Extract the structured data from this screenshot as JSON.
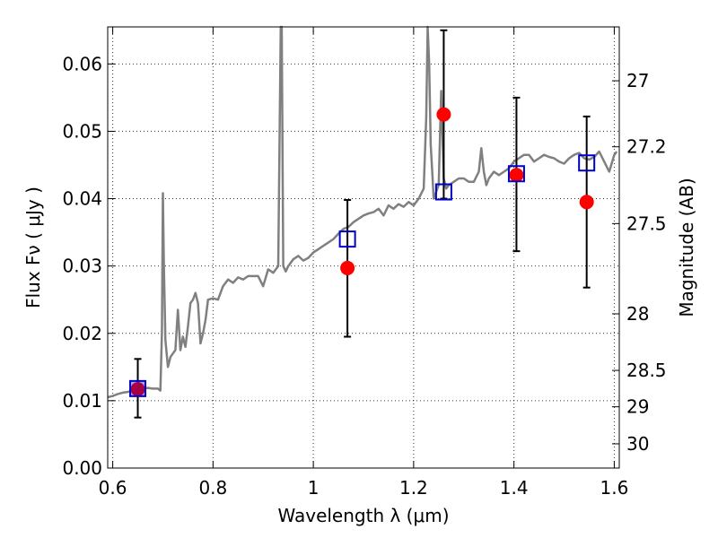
{
  "chart_data": {
    "type": "line",
    "xlabel": "Wavelength  λ (μm)",
    "ylabel_left": "Flux  Fν  ( μJy )",
    "ylabel_right": "Magnitude (AB)",
    "xlim": [
      0.59,
      1.61
    ],
    "ylim": [
      0.0,
      0.0655
    ],
    "grid": true,
    "x_ticks": [
      0.6,
      0.8,
      1.0,
      1.2,
      1.4,
      1.6
    ],
    "x_tick_labels": [
      "0.6",
      "0.8",
      "1",
      "1.2",
      "1.4",
      "1.6"
    ],
    "y_ticks": [
      0.0,
      0.01,
      0.02,
      0.03,
      0.04,
      0.05,
      0.06
    ],
    "y_tick_labels": [
      "0.00",
      "0.01",
      "0.02",
      "0.03",
      "0.04",
      "0.05",
      "0.06"
    ],
    "right_ticks": [
      {
        "flux": 0.0575,
        "label": "27"
      },
      {
        "flux": 0.0477,
        "label": "27.2"
      },
      {
        "flux": 0.0363,
        "label": "27.5"
      },
      {
        "flux": 0.0229,
        "label": "28"
      },
      {
        "flux": 0.0145,
        "label": "28.5"
      },
      {
        "flux": 0.0091,
        "label": "29"
      },
      {
        "flux": 0.0036,
        "label": "30"
      }
    ],
    "colors": {
      "spectrum": "#808080",
      "observed": "#ff0000",
      "model": "#0000cc",
      "errorbar": "#000000",
      "grid": "#000000"
    },
    "series": [
      {
        "kind": "spectrum",
        "x": [
          0.59,
          0.6,
          0.61,
          0.62,
          0.63,
          0.64,
          0.65,
          0.66,
          0.67,
          0.68,
          0.69,
          0.695,
          0.698,
          0.7,
          0.702,
          0.705,
          0.71,
          0.715,
          0.72,
          0.725,
          0.73,
          0.735,
          0.74,
          0.745,
          0.75,
          0.755,
          0.76,
          0.765,
          0.77,
          0.775,
          0.78,
          0.785,
          0.79,
          0.8,
          0.81,
          0.82,
          0.83,
          0.84,
          0.85,
          0.86,
          0.87,
          0.88,
          0.89,
          0.9,
          0.91,
          0.92,
          0.93,
          0.935,
          0.937,
          0.94,
          0.943,
          0.945,
          0.95,
          0.96,
          0.97,
          0.98,
          0.99,
          1.0,
          1.01,
          1.02,
          1.03,
          1.04,
          1.05,
          1.06,
          1.07,
          1.08,
          1.09,
          1.1,
          1.11,
          1.12,
          1.13,
          1.14,
          1.15,
          1.16,
          1.17,
          1.18,
          1.19,
          1.2,
          1.21,
          1.22,
          1.225,
          1.228,
          1.231,
          1.234,
          1.237,
          1.24,
          1.245,
          1.25,
          1.255,
          1.26,
          1.265,
          1.27,
          1.28,
          1.29,
          1.3,
          1.31,
          1.32,
          1.33,
          1.335,
          1.34,
          1.345,
          1.35,
          1.36,
          1.37,
          1.38,
          1.39,
          1.4,
          1.41,
          1.42,
          1.43,
          1.44,
          1.45,
          1.46,
          1.47,
          1.48,
          1.49,
          1.5,
          1.51,
          1.52,
          1.53,
          1.54,
          1.55,
          1.56,
          1.57,
          1.58,
          1.59,
          1.6,
          1.605
        ],
        "y": [
          0.0105,
          0.0107,
          0.011,
          0.0112,
          0.0113,
          0.0115,
          0.0117,
          0.0118,
          0.0119,
          0.0118,
          0.0118,
          0.0115,
          0.02,
          0.0408,
          0.03,
          0.019,
          0.015,
          0.0165,
          0.017,
          0.0175,
          0.0235,
          0.0175,
          0.0195,
          0.018,
          0.021,
          0.0245,
          0.025,
          0.026,
          0.0245,
          0.0185,
          0.02,
          0.022,
          0.025,
          0.0252,
          0.025,
          0.027,
          0.028,
          0.0275,
          0.0283,
          0.028,
          0.0285,
          0.0285,
          0.0285,
          0.027,
          0.0295,
          0.029,
          0.03,
          0.0655,
          0.0655,
          0.03,
          0.0295,
          0.0292,
          0.03,
          0.031,
          0.0315,
          0.0308,
          0.0312,
          0.032,
          0.0325,
          0.033,
          0.0335,
          0.034,
          0.0348,
          0.0355,
          0.0358,
          0.0365,
          0.037,
          0.0375,
          0.0378,
          0.038,
          0.0385,
          0.0375,
          0.039,
          0.0385,
          0.0392,
          0.0388,
          0.0395,
          0.039,
          0.04,
          0.0415,
          0.052,
          0.0655,
          0.06,
          0.048,
          0.044,
          0.04,
          0.041,
          0.042,
          0.056,
          0.043,
          0.0415,
          0.042,
          0.0425,
          0.043,
          0.043,
          0.0425,
          0.0425,
          0.044,
          0.0475,
          0.044,
          0.042,
          0.043,
          0.044,
          0.0435,
          0.044,
          0.0445,
          0.0455,
          0.046,
          0.0465,
          0.0465,
          0.0455,
          0.046,
          0.0465,
          0.0462,
          0.046,
          0.0455,
          0.0452,
          0.046,
          0.0465,
          0.0468,
          0.046,
          0.0458,
          0.0462,
          0.047,
          0.0455,
          0.044,
          0.0465,
          0.047
        ]
      },
      {
        "kind": "observed",
        "points": [
          {
            "x": 0.65,
            "y": 0.0117,
            "lo": 0.0075,
            "hi": 0.0162
          },
          {
            "x": 1.068,
            "y": 0.0297,
            "lo": 0.0195,
            "hi": 0.0398
          },
          {
            "x": 1.26,
            "y": 0.0525,
            "lo": 0.04,
            "hi": 0.065
          },
          {
            "x": 1.405,
            "y": 0.0435,
            "lo": 0.0322,
            "hi": 0.055
          },
          {
            "x": 1.545,
            "y": 0.0395,
            "lo": 0.0268,
            "hi": 0.0522
          }
        ]
      },
      {
        "kind": "model",
        "points": [
          {
            "x": 0.65,
            "y": 0.0118
          },
          {
            "x": 1.068,
            "y": 0.034
          },
          {
            "x": 1.26,
            "y": 0.041
          },
          {
            "x": 1.405,
            "y": 0.0437
          },
          {
            "x": 1.545,
            "y": 0.0453
          }
        ]
      }
    ]
  }
}
